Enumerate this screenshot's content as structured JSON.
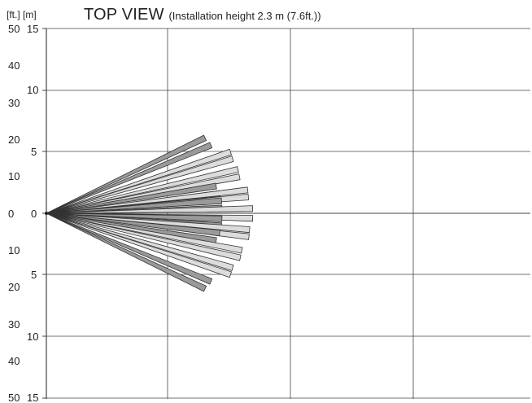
{
  "header": {
    "units": "[ft.] [m]",
    "title": "TOP VIEW",
    "subtitle": "(Installation height 2.3 m (7.6ft.))"
  },
  "axis_labels": {
    "ft": [
      "50",
      "40",
      "30",
      "20",
      "10",
      "0",
      "10",
      "20",
      "30",
      "40",
      "50"
    ],
    "m": [
      "15",
      "10",
      "5",
      "0",
      "5",
      "10",
      "15"
    ]
  },
  "colors": {
    "dark_zone": "#9a9a9a",
    "light_zone": "#dcdcdc",
    "outline": "#333333",
    "grid": "#444444"
  },
  "detection_zones": [
    {
      "angle_deg": 25.4,
      "length_m": 14.3,
      "shade": "dark"
    },
    {
      "angle_deg": 22.5,
      "length_m": 14.5,
      "shade": "dark"
    },
    {
      "angle_deg": 18.4,
      "length_m": 15.8,
      "shade": "light"
    },
    {
      "angle_deg": 16.3,
      "length_m": 15.8,
      "shade": "light"
    },
    {
      "angle_deg": 12.9,
      "length_m": 16.0,
      "shade": "light"
    },
    {
      "angle_deg": 10.7,
      "length_m": 16.0,
      "shade": "light"
    },
    {
      "angle_deg": 9.1,
      "length_m": 14.0,
      "shade": "dark"
    },
    {
      "angle_deg": 6.5,
      "length_m": 14.2,
      "shade": "dark"
    },
    {
      "angle_deg": 6.6,
      "length_m": 16.5,
      "shade": "light"
    },
    {
      "angle_deg": 4.6,
      "length_m": 16.5,
      "shade": "light"
    },
    {
      "angle_deg": 4.1,
      "length_m": 14.3,
      "shade": "dark"
    },
    {
      "angle_deg": 1.7,
      "length_m": 14.3,
      "shade": "dark"
    },
    {
      "angle_deg": 1.3,
      "length_m": 16.8,
      "shade": "light"
    },
    {
      "angle_deg": -1.4,
      "length_m": 16.8,
      "shade": "light"
    },
    {
      "angle_deg": -1.8,
      "length_m": 14.3,
      "shade": "dark"
    },
    {
      "angle_deg": -4.1,
      "length_m": 14.3,
      "shade": "dark"
    },
    {
      "angle_deg": -4.6,
      "length_m": 16.6,
      "shade": "light"
    },
    {
      "angle_deg": -6.6,
      "length_m": 16.6,
      "shade": "light"
    },
    {
      "angle_deg": -6.5,
      "length_m": 14.2,
      "shade": "dark"
    },
    {
      "angle_deg": -9.1,
      "length_m": 14.0,
      "shade": "dark"
    },
    {
      "angle_deg": -10.7,
      "length_m": 16.2,
      "shade": "light"
    },
    {
      "angle_deg": -12.9,
      "length_m": 16.2,
      "shade": "light"
    },
    {
      "angle_deg": -16.3,
      "length_m": 15.8,
      "shade": "light"
    },
    {
      "angle_deg": -18.4,
      "length_m": 15.8,
      "shade": "light"
    },
    {
      "angle_deg": -22.5,
      "length_m": 14.5,
      "shade": "dark"
    },
    {
      "angle_deg": -25.4,
      "length_m": 14.3,
      "shade": "dark"
    }
  ]
}
